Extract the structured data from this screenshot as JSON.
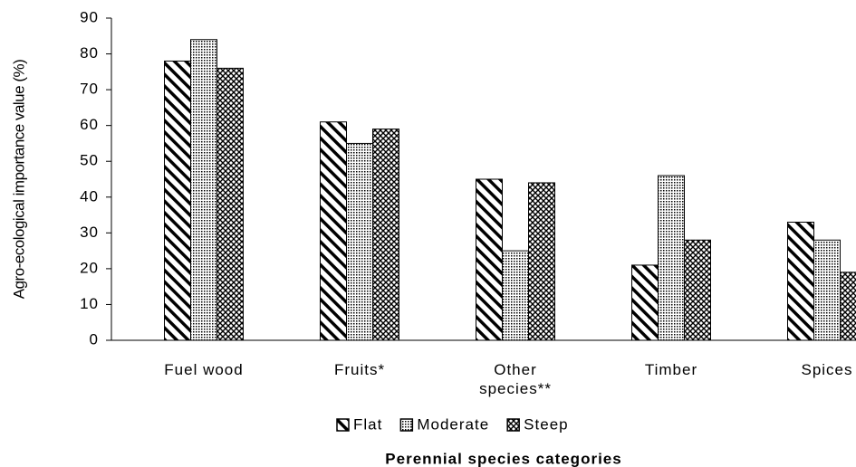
{
  "chart_data": {
    "type": "bar",
    "y_label": "Agro-ecological importance value (%)",
    "x_label": "Perennial species categories",
    "categories": [
      "Fuel wood",
      "Fruits*",
      "Other species**",
      "Timber",
      "Spices"
    ],
    "series": [
      {
        "name": "Flat",
        "color": "#000000",
        "values": [
          78,
          61,
          45,
          21,
          33
        ]
      },
      {
        "name": "Moderate",
        "color": "#000000",
        "values": [
          84,
          55,
          25,
          46,
          28
        ]
      },
      {
        "name": "Steep",
        "color": "#000000",
        "values": [
          76,
          59,
          44,
          28,
          19
        ]
      }
    ],
    "ylim": [
      0,
      90
    ],
    "yticks": [
      0,
      10,
      20,
      30,
      40,
      50,
      60,
      70,
      80,
      90
    ],
    "grid": false,
    "legend": "bottom"
  }
}
